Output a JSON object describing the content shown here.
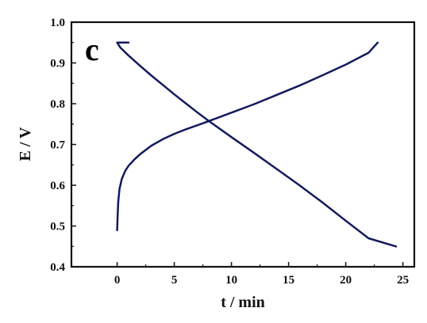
{
  "chart_data": {
    "type": "line",
    "panel_label": "c",
    "xlabel": "t / min",
    "ylabel": "E / V",
    "xlim": [
      -4,
      26
    ],
    "ylim": [
      0.4,
      1.0
    ],
    "xticks": [
      0,
      5,
      10,
      15,
      20,
      25
    ],
    "yticks": [
      0.4,
      0.5,
      0.6,
      0.7,
      0.8,
      0.9,
      1.0
    ],
    "xtick_labels": [
      "0",
      "5",
      "10",
      "15",
      "20",
      "25"
    ],
    "ytick_labels": [
      "0.4",
      "0.5",
      "0.6",
      "0.7",
      "0.8",
      "0.9",
      "1.0"
    ],
    "grid": false,
    "line_color": "#141a5c",
    "series": [
      {
        "x": [
          1.0,
          0.0,
          0.3,
          1.0,
          2.0,
          3.0,
          4.0,
          5.0,
          6.0,
          7.0,
          8.0,
          10.0,
          12.0,
          14.0,
          16.0,
          18.0,
          20.0,
          22.0,
          24.4
        ],
        "y": [
          0.95,
          0.95,
          0.937,
          0.918,
          0.893,
          0.869,
          0.846,
          0.823,
          0.801,
          0.779,
          0.758,
          0.718,
          0.679,
          0.639,
          0.599,
          0.557,
          0.513,
          0.47,
          0.45
        ]
      },
      {
        "x": [
          0.0,
          0.05,
          0.1,
          0.2,
          0.4,
          0.7,
          1.0,
          1.5,
          2.0,
          3.0,
          4.0,
          5.0,
          6.0,
          7.0,
          8.0,
          10.0,
          12.0,
          14.0,
          16.0,
          18.0,
          20.0,
          22.0,
          22.8
        ],
        "y": [
          0.49,
          0.53,
          0.56,
          0.59,
          0.615,
          0.635,
          0.648,
          0.663,
          0.676,
          0.697,
          0.713,
          0.726,
          0.737,
          0.747,
          0.757,
          0.778,
          0.799,
          0.822,
          0.845,
          0.87,
          0.896,
          0.925,
          0.95
        ]
      }
    ]
  }
}
